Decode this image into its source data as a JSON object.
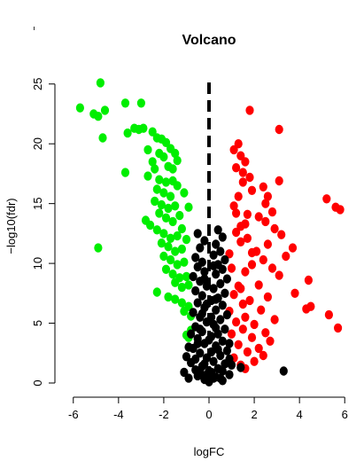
{
  "chart_data": {
    "type": "scatter",
    "title": "Volcano",
    "xlabel": "logFC",
    "ylabel": "−log10(fdr)",
    "xlim": [
      -6.5,
      6.5
    ],
    "ylim": [
      0,
      25.5
    ],
    "xticks": [
      -6,
      -4,
      -2,
      0,
      2,
      4,
      6
    ],
    "yticks": [
      0,
      5,
      10,
      15,
      20,
      25
    ],
    "threshold_line": {
      "x": 0,
      "style": "dashed"
    },
    "colors": {
      "up": "#ff0000",
      "down": "#00ee00",
      "ns": "#000000"
    },
    "series": [
      {
        "color_key": "down",
        "points": [
          [
            -4.8,
            25.1
          ],
          [
            -5.7,
            23.0
          ],
          [
            -5.1,
            22.5
          ],
          [
            -4.9,
            22.3
          ],
          [
            -4.6,
            22.8
          ],
          [
            -3.7,
            23.4
          ],
          [
            -3.0,
            23.4
          ],
          [
            -3.6,
            20.9
          ],
          [
            -3.3,
            21.3
          ],
          [
            -3.1,
            21.2
          ],
          [
            -2.9,
            21.3
          ],
          [
            -2.5,
            21.0
          ],
          [
            -2.3,
            20.5
          ],
          [
            -2.1,
            20.4
          ],
          [
            -1.9,
            20.1
          ],
          [
            -1.7,
            19.6
          ],
          [
            -1.5,
            19.2
          ],
          [
            -4.7,
            20.5
          ],
          [
            -2.7,
            19.5
          ],
          [
            -2.5,
            18.5
          ],
          [
            -2.0,
            18.9
          ],
          [
            -1.8,
            18.1
          ],
          [
            -1.6,
            17.9
          ],
          [
            -3.7,
            17.6
          ],
          [
            -2.7,
            17.3
          ],
          [
            -2.2,
            17.0
          ],
          [
            -1.9,
            16.8
          ],
          [
            -1.4,
            16.5
          ],
          [
            -2.3,
            16.2
          ],
          [
            -2.0,
            15.9
          ],
          [
            -1.7,
            15.6
          ],
          [
            -2.4,
            15.2
          ],
          [
            -2.1,
            14.9
          ],
          [
            -1.8,
            14.6
          ],
          [
            -1.5,
            14.8
          ],
          [
            -2.2,
            14.2
          ],
          [
            -1.9,
            13.8
          ],
          [
            -1.6,
            13.5
          ],
          [
            -2.6,
            13.2
          ],
          [
            -2.3,
            12.8
          ],
          [
            -2.0,
            12.5
          ],
          [
            -1.7,
            12.1
          ],
          [
            -1.4,
            12.3
          ],
          [
            -2.1,
            11.7
          ],
          [
            -1.8,
            11.4
          ],
          [
            -1.5,
            11.0
          ],
          [
            -1.2,
            11.2
          ],
          [
            -2.0,
            10.6
          ],
          [
            -1.7,
            10.3
          ],
          [
            -1.4,
            9.9
          ],
          [
            -1.1,
            10.1
          ],
          [
            -1.9,
            9.5
          ],
          [
            -1.6,
            9.1
          ],
          [
            -1.3,
            8.8
          ],
          [
            -1.0,
            8.9
          ],
          [
            -1.5,
            8.4
          ],
          [
            -1.2,
            8.0
          ],
          [
            -0.9,
            8.2
          ],
          [
            -2.3,
            7.6
          ],
          [
            -1.8,
            7.2
          ],
          [
            -1.5,
            7.0
          ],
          [
            -1.2,
            6.7
          ],
          [
            -0.9,
            6.4
          ],
          [
            -1.1,
            6.0
          ],
          [
            -0.8,
            5.6
          ],
          [
            -4.9,
            11.3
          ],
          [
            -1.3,
            14.0
          ],
          [
            -1.0,
            12.0
          ],
          [
            -0.9,
            14.7
          ],
          [
            -1.1,
            15.9
          ],
          [
            -2.8,
            13.6
          ],
          [
            -0.8,
            4.4
          ],
          [
            -0.9,
            3.8
          ],
          [
            -1.0,
            4.0
          ],
          [
            -1.2,
            12.9
          ],
          [
            -1.6,
            16.9
          ],
          [
            -2.4,
            17.9
          ],
          [
            -1.4,
            18.6
          ],
          [
            -2.2,
            19.2
          ]
        ]
      },
      {
        "color_key": "up",
        "points": [
          [
            1.8,
            22.8
          ],
          [
            3.1,
            21.2
          ],
          [
            1.3,
            20.0
          ],
          [
            1.1,
            19.5
          ],
          [
            1.4,
            19.0
          ],
          [
            1.6,
            18.5
          ],
          [
            1.2,
            18.0
          ],
          [
            1.5,
            17.6
          ],
          [
            1.8,
            17.2
          ],
          [
            3.1,
            16.9
          ],
          [
            2.4,
            16.4
          ],
          [
            1.9,
            16.1
          ],
          [
            2.6,
            15.6
          ],
          [
            5.2,
            15.4
          ],
          [
            2.5,
            15.0
          ],
          [
            1.1,
            14.8
          ],
          [
            5.6,
            14.7
          ],
          [
            5.8,
            14.5
          ],
          [
            2.8,
            14.3
          ],
          [
            2.2,
            13.9
          ],
          [
            2.5,
            13.5
          ],
          [
            1.4,
            13.1
          ],
          [
            2.9,
            12.9
          ],
          [
            3.2,
            12.4
          ],
          [
            1.7,
            12.1
          ],
          [
            2.6,
            11.6
          ],
          [
            3.7,
            11.3
          ],
          [
            2.1,
            11.0
          ],
          [
            3.4,
            10.6
          ],
          [
            2.4,
            10.3
          ],
          [
            1.9,
            9.9
          ],
          [
            2.8,
            9.6
          ],
          [
            1.6,
            9.3
          ],
          [
            3.1,
            9.0
          ],
          [
            4.4,
            8.6
          ],
          [
            2.2,
            8.2
          ],
          [
            1.4,
            7.9
          ],
          [
            3.8,
            7.5
          ],
          [
            2.6,
            7.2
          ],
          [
            1.8,
            6.9
          ],
          [
            4.5,
            6.4
          ],
          [
            4.3,
            6.2
          ],
          [
            2.3,
            6.1
          ],
          [
            5.3,
            5.7
          ],
          [
            1.6,
            5.5
          ],
          [
            2.9,
            5.3
          ],
          [
            1.2,
            5.1
          ],
          [
            2.0,
            4.9
          ],
          [
            5.7,
            4.6
          ],
          [
            1.5,
            4.5
          ],
          [
            2.5,
            4.2
          ],
          [
            1.9,
            3.8
          ],
          [
            2.7,
            3.5
          ],
          [
            1.3,
            3.2
          ],
          [
            2.2,
            2.9
          ],
          [
            1.7,
            2.6
          ],
          [
            2.4,
            2.3
          ],
          [
            1.1,
            2.1
          ],
          [
            2.0,
            1.8
          ],
          [
            1.4,
            1.5
          ],
          [
            1.6,
            1.2
          ],
          [
            1.5,
            16.8
          ],
          [
            1.3,
            15.6
          ],
          [
            1.7,
            14.1
          ],
          [
            1.2,
            12.6
          ],
          [
            1.9,
            10.9
          ],
          [
            1.0,
            9.6
          ],
          [
            1.3,
            8.1
          ],
          [
            1.5,
            6.6
          ],
          [
            1.0,
            4.1
          ],
          [
            0.9,
            6.0
          ],
          [
            1.1,
            7.4
          ],
          [
            1.4,
            11.8
          ],
          [
            1.6,
            13.3
          ],
          [
            0.9,
            10.8
          ],
          [
            1.2,
            14.2
          ]
        ]
      },
      {
        "color_key": "ns",
        "points": [
          [
            3.3,
            1.0
          ],
          [
            1.4,
            1.3
          ],
          [
            0.6,
            0.2
          ],
          [
            0.3,
            0.5
          ],
          [
            -0.2,
            0.3
          ],
          [
            -0.5,
            0.6
          ],
          [
            0.1,
            0.9
          ],
          [
            0.4,
            1.2
          ],
          [
            -0.3,
            1.4
          ],
          [
            0.7,
            1.6
          ],
          [
            -0.6,
            1.1
          ],
          [
            0.2,
            1.8
          ],
          [
            -0.1,
            2.1
          ],
          [
            0.5,
            2.3
          ],
          [
            -0.4,
            2.5
          ],
          [
            0.8,
            2.7
          ],
          [
            -0.7,
            2.9
          ],
          [
            0.3,
            3.1
          ],
          [
            -0.2,
            3.3
          ],
          [
            0.6,
            3.5
          ],
          [
            -0.5,
            3.7
          ],
          [
            0.1,
            3.9
          ],
          [
            0.4,
            4.1
          ],
          [
            -0.3,
            4.3
          ],
          [
            0.7,
            4.5
          ],
          [
            -0.6,
            4.7
          ],
          [
            0.2,
            4.9
          ],
          [
            -0.1,
            5.1
          ],
          [
            0.5,
            5.3
          ],
          [
            -0.4,
            5.5
          ],
          [
            0.8,
            5.7
          ],
          [
            -0.7,
            5.9
          ],
          [
            0.3,
            6.1
          ],
          [
            -0.2,
            6.3
          ],
          [
            0.6,
            6.5
          ],
          [
            -0.5,
            6.7
          ],
          [
            0.1,
            6.9
          ],
          [
            0.4,
            7.1
          ],
          [
            -0.3,
            7.3
          ],
          [
            0.7,
            7.5
          ],
          [
            -0.6,
            7.7
          ],
          [
            0.2,
            7.9
          ],
          [
            -0.1,
            8.1
          ],
          [
            0.5,
            8.3
          ],
          [
            -0.4,
            8.5
          ],
          [
            0.8,
            8.7
          ],
          [
            -0.7,
            8.9
          ],
          [
            0.3,
            9.1
          ],
          [
            -0.2,
            9.3
          ],
          [
            0.6,
            9.5
          ],
          [
            -0.5,
            9.7
          ],
          [
            0.4,
            9.9
          ],
          [
            -0.3,
            10.1
          ],
          [
            0.7,
            10.3
          ],
          [
            -0.6,
            10.5
          ],
          [
            0.2,
            10.7
          ],
          [
            0.5,
            11.0
          ],
          [
            -0.4,
            11.3
          ],
          [
            0.3,
            11.6
          ],
          [
            -0.2,
            11.9
          ],
          [
            0.6,
            12.2
          ],
          [
            -0.5,
            12.5
          ],
          [
            0.4,
            12.8
          ],
          [
            -0.9,
            0.4
          ],
          [
            0.9,
            0.7
          ],
          [
            -1.1,
            0.9
          ],
          [
            1.0,
            1.5
          ],
          [
            -0.8,
            1.7
          ],
          [
            0.9,
            2.0
          ],
          [
            -1.0,
            2.2
          ],
          [
            -0.9,
            3.0
          ],
          [
            0.9,
            3.3
          ],
          [
            -0.8,
            4.1
          ],
          [
            -0.4,
            4.5
          ],
          [
            0.0,
            0.1
          ],
          [
            0.2,
            0.4
          ],
          [
            -0.1,
            0.7
          ],
          [
            0.0,
            1.0
          ],
          [
            0.1,
            2.6
          ],
          [
            -0.3,
            5.8
          ],
          [
            0.3,
            7.0
          ],
          [
            -0.2,
            8.7
          ],
          [
            0.2,
            9.8
          ],
          [
            0.0,
            3.6
          ],
          [
            -0.6,
            2.0
          ],
          [
            0.6,
            1.0
          ],
          [
            -0.4,
            0.9
          ],
          [
            0.5,
            0.4
          ],
          [
            0.1,
            5.5
          ],
          [
            -0.1,
            6.6
          ],
          [
            0.3,
            4.6
          ],
          [
            -0.5,
            3.3
          ],
          [
            0.4,
            2.8
          ],
          [
            -0.2,
            1.6
          ]
        ]
      }
    ]
  }
}
